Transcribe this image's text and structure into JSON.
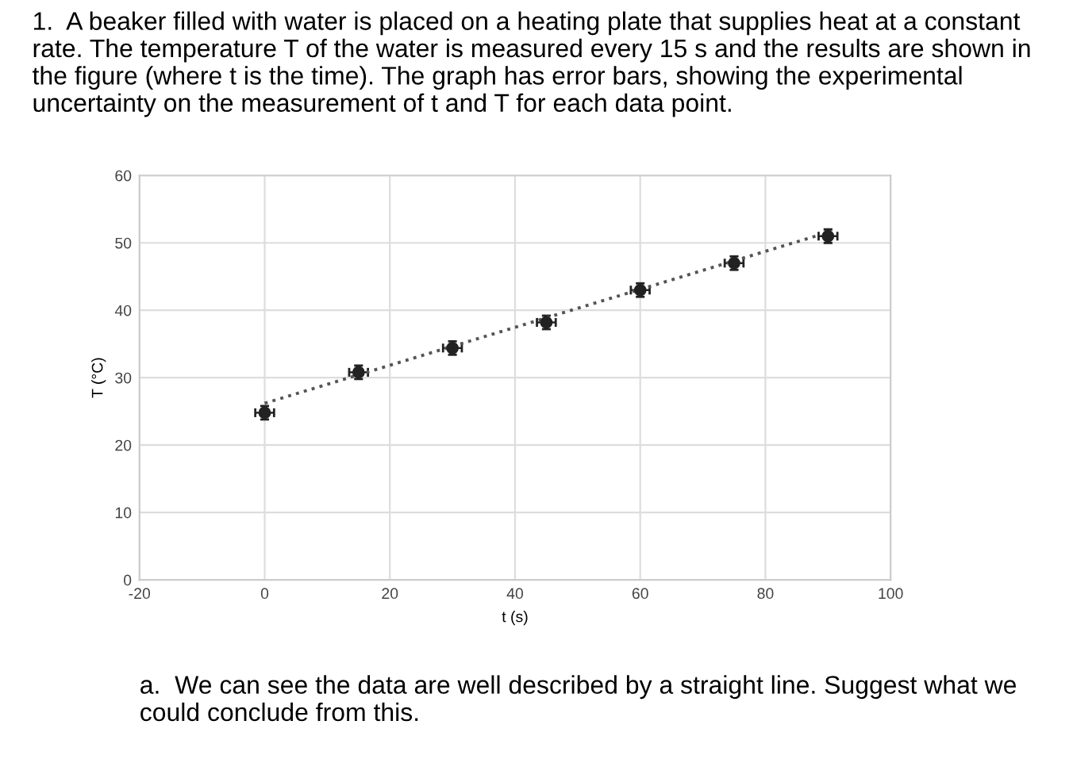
{
  "chart_data": {
    "type": "scatter",
    "title": "1.  A beaker filled with water is placed on a heating plate that supplies heat at a constant rate. The temperature T of the water is measured every 15 s and the results are shown in the figure (where t is the time). The graph has error bars, showing the experimental uncertainty on the measurement of t and T for each data point.",
    "xlabel": "t (s)",
    "ylabel": "T (°C)",
    "x": [
      0,
      15,
      30,
      45,
      60,
      75,
      90
    ],
    "series": [
      {
        "color": "#222222",
        "values": [
          24.8,
          30.8,
          34.4,
          38.2,
          43,
          47,
          51
        ],
        "errors": [
          1,
          1,
          1,
          1,
          1,
          1,
          1
        ],
        "xerrors": [
          1.5,
          1.5,
          1.5,
          1.5,
          1.5,
          1.5,
          1.5
        ],
        "marker": "circle"
      },
      {
        "type": "line",
        "color": "#555555",
        "x": [
          0,
          88
        ],
        "values": [
          26.2,
          51
        ],
        "line_style": "dotted",
        "marker": "none"
      }
    ],
    "xlim": [
      -20,
      100
    ],
    "xticks": [
      -20,
      0,
      20,
      40,
      60,
      80,
      100
    ],
    "ylim": [
      0,
      60
    ],
    "yticks": [
      0,
      10,
      20,
      30,
      40,
      50,
      60
    ],
    "grid": true,
    "annotations": [
      "a.  We can see the data are well described by a straight line. Suggest what we could conclude from this."
    ]
  }
}
